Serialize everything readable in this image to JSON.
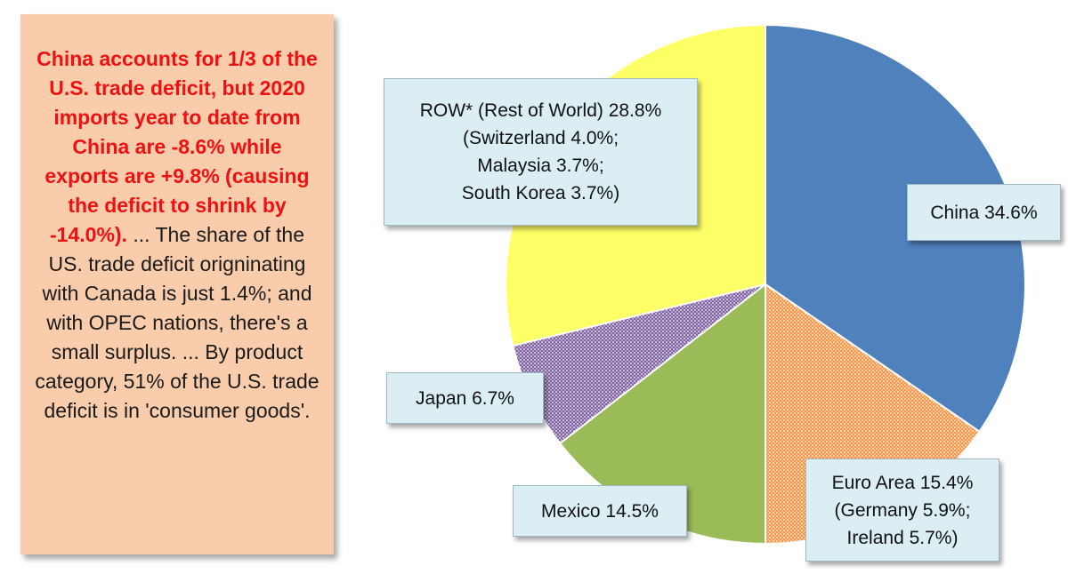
{
  "note": {
    "highlight": "China accounts for 1/3 of the U.S. trade deficit, but 2020 imports year to date from China are -8.6% while exports are +9.8% (causing the deficit to shrink by -14.0%).",
    "body": " ... The share of the US. trade deficit origninating with Canada is just 1.4%; and with OPEC nations, there's a small surplus. ... By product category, 51% of the U.S. trade deficit is in 'consumer goods'."
  },
  "chart_data": {
    "type": "pie",
    "start": "12 o'clock, clockwise",
    "slices": [
      {
        "key": "china",
        "name": "China",
        "value": 34.6,
        "color": "#4f81bd",
        "pattern": "solid",
        "label_lines": [
          "China 34.6%"
        ]
      },
      {
        "key": "euro",
        "name": "Euro Area",
        "value": 15.4,
        "color": "#f79646",
        "pattern": "dotted",
        "label_lines": [
          "Euro Area 15.4%",
          "(Germany 5.9%;",
          "Ireland 5.7%)"
        ]
      },
      {
        "key": "mexico",
        "name": "Mexico",
        "value": 14.5,
        "color": "#9bbb59",
        "pattern": "solid",
        "label_lines": [
          "Mexico 14.5%"
        ]
      },
      {
        "key": "japan",
        "name": "Japan",
        "value": 6.7,
        "color": "#8064a2",
        "pattern": "dotted",
        "label_lines": [
          "Japan 6.7%"
        ]
      },
      {
        "key": "row",
        "name": "ROW* (Rest of World)",
        "value": 28.8,
        "color": "#ffff66",
        "pattern": "solid",
        "label_lines": [
          "ROW* (Rest of World) 28.8%",
          "(Switzerland 4.0%;",
          "Malaysia 3.7%;",
          "South Korea 3.7%)"
        ]
      }
    ]
  }
}
